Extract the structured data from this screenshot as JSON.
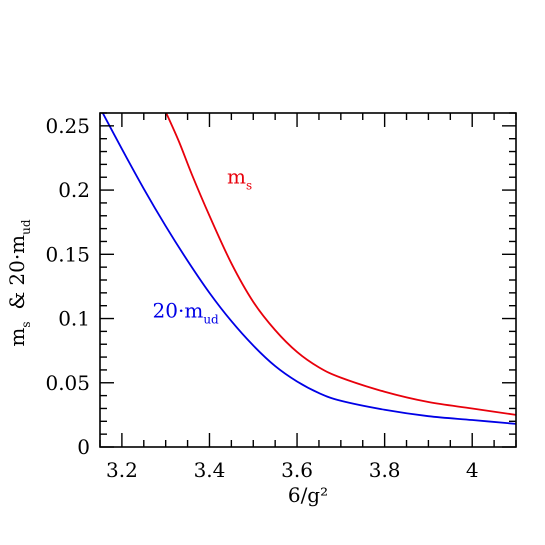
{
  "chart_data": {
    "type": "line",
    "title": "",
    "xlabel": "6/g²",
    "ylabel": "m_s & 20·m_ud",
    "ylabel_parts": {
      "ms_base": "m",
      "ms_sub": "s",
      "amp": "&",
      "mud_base": "20·m",
      "mud_sub": "ud"
    },
    "xlim": [
      3.15,
      4.1
    ],
    "ylim": [
      0,
      0.26
    ],
    "x_ticks": [
      3.2,
      3.4,
      3.6,
      3.8,
      4.0
    ],
    "x_tick_labels": [
      "3.2",
      "3.4",
      "3.6",
      "3.8",
      "4"
    ],
    "y_ticks": [
      0,
      0.05,
      0.1,
      0.15,
      0.2,
      0.25
    ],
    "y_tick_labels": [
      "0",
      "0.05",
      "0.1",
      "0.15",
      "0.2",
      "0.25"
    ],
    "grid": false,
    "legend": "none",
    "series": [
      {
        "label_base": "m",
        "label_sub": "s",
        "color": "#e8000b",
        "label_x": 3.44,
        "label_y": 0.205,
        "x": [
          3.3,
          3.33,
          3.36,
          3.4,
          3.45,
          3.5,
          3.55,
          3.6,
          3.65,
          3.7,
          3.8,
          3.9,
          4.0,
          4.1
        ],
        "y": [
          0.261,
          0.238,
          0.212,
          0.18,
          0.143,
          0.113,
          0.091,
          0.074,
          0.062,
          0.054,
          0.043,
          0.035,
          0.03,
          0.025
        ]
      },
      {
        "label_base": "20·m",
        "label_sub": "ud",
        "color": "#0000e6",
        "label_x": 3.27,
        "label_y": 0.101,
        "x": [
          3.15,
          3.2,
          3.25,
          3.3,
          3.35,
          3.4,
          3.45,
          3.5,
          3.55,
          3.6,
          3.65,
          3.7,
          3.8,
          3.9,
          4.0,
          4.1
        ],
        "y": [
          0.264,
          0.232,
          0.201,
          0.172,
          0.145,
          0.12,
          0.098,
          0.079,
          0.063,
          0.051,
          0.042,
          0.036,
          0.029,
          0.024,
          0.021,
          0.018
        ]
      }
    ]
  }
}
